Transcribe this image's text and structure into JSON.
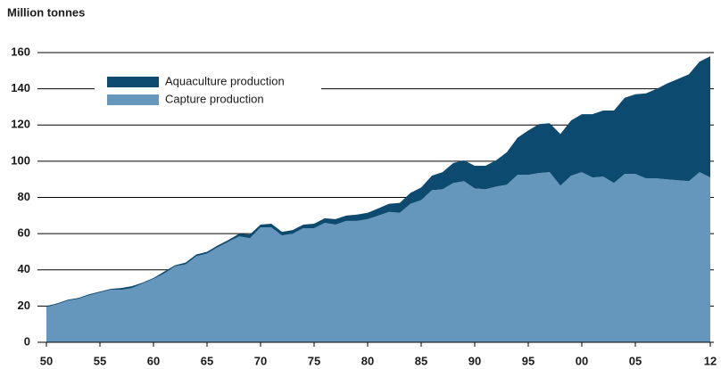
{
  "chart_data": {
    "type": "stacked-area",
    "y_label": "Million tonnes",
    "x": [
      1950,
      1951,
      1952,
      1953,
      1954,
      1955,
      1956,
      1957,
      1958,
      1959,
      1960,
      1961,
      1962,
      1963,
      1964,
      1965,
      1966,
      1967,
      1968,
      1969,
      1970,
      1971,
      1972,
      1973,
      1974,
      1975,
      1976,
      1977,
      1978,
      1979,
      1980,
      1981,
      1982,
      1983,
      1984,
      1985,
      1986,
      1987,
      1988,
      1989,
      1990,
      1991,
      1992,
      1993,
      1994,
      1995,
      1996,
      1997,
      1998,
      1999,
      2000,
      2001,
      2002,
      2003,
      2004,
      2005,
      2006,
      2007,
      2008,
      2009,
      2010,
      2011,
      2012
    ],
    "series": [
      {
        "name": "Capture production",
        "color": "#6497bb",
        "values": [
          19.5,
          21,
          23,
          24,
          26,
          27.5,
          29,
          29,
          30,
          32.5,
          35,
          38,
          42,
          43,
          47.5,
          49,
          52.5,
          55.5,
          58.5,
          57.5,
          63.5,
          63.5,
          59,
          60,
          63,
          63,
          66,
          65,
          67,
          67,
          68,
          70,
          72,
          71.5,
          76.5,
          78.5,
          84,
          84.5,
          88,
          89,
          85,
          84.5,
          86,
          87,
          92.5,
          92.5,
          93.5,
          94,
          86.5,
          92,
          94,
          91,
          91.5,
          88,
          93,
          93,
          90.5,
          90.5,
          90,
          89.5,
          89,
          94,
          91
        ]
      },
      {
        "name": "Aquaculture production",
        "color": "#0d4a70",
        "values": [
          0.5,
          0.5,
          0.5,
          0.5,
          0.5,
          0.5,
          0.5,
          1,
          1,
          0.5,
          0.5,
          1,
          0.5,
          1,
          1,
          1,
          1,
          1,
          1.5,
          2,
          1.5,
          2,
          2,
          2,
          2,
          2.5,
          2.5,
          3,
          3,
          3.5,
          3.5,
          4,
          4.5,
          5.5,
          6,
          7,
          8,
          9.5,
          11,
          11.5,
          12.5,
          13,
          14.5,
          18,
          20.5,
          24.5,
          27,
          27,
          28.5,
          30.5,
          32,
          35,
          36.5,
          40,
          42,
          44,
          47,
          49.5,
          53,
          56,
          59,
          61,
          67
        ]
      }
    ],
    "xlim": [
      1950,
      2012
    ],
    "xticks": [
      {
        "value": 1950,
        "label": "50"
      },
      {
        "value": 1955,
        "label": "55"
      },
      {
        "value": 1960,
        "label": "60"
      },
      {
        "value": 1965,
        "label": "65"
      },
      {
        "value": 1970,
        "label": "70"
      },
      {
        "value": 1975,
        "label": "75"
      },
      {
        "value": 1980,
        "label": "80"
      },
      {
        "value": 1985,
        "label": "85"
      },
      {
        "value": 1990,
        "label": "90"
      },
      {
        "value": 1995,
        "label": "95"
      },
      {
        "value": 2000,
        "label": "00"
      },
      {
        "value": 2005,
        "label": "05"
      },
      {
        "value": 2012,
        "label": "12"
      }
    ],
    "ylim": [
      0,
      160
    ],
    "yticks": [
      0,
      20,
      40,
      60,
      80,
      100,
      120,
      140,
      160
    ],
    "grid": true,
    "legend": "top-left"
  }
}
